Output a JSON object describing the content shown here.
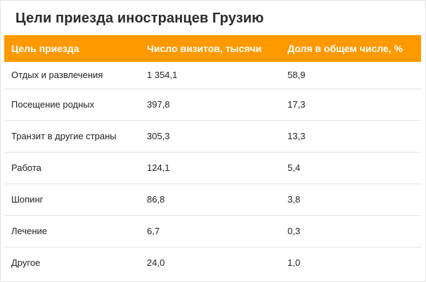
{
  "title": "Цели приезда иностранцев Грузию",
  "table": {
    "headers": [
      "Цель приезда",
      "Число визитов, тысячи",
      "Доля в общем числе, %"
    ],
    "rows": [
      [
        "Отдых и развлечения",
        "1 354,1",
        "58,9"
      ],
      [
        "Посещение родных",
        "397,8",
        "17,3"
      ],
      [
        "Транзит в другие страны",
        "305,3",
        "13,3"
      ],
      [
        "Работа",
        "124,1",
        "5,4"
      ],
      [
        "Шопинг",
        "86,8",
        "3,8"
      ],
      [
        "Лечение",
        "6,7",
        "0,3"
      ],
      [
        "Другое",
        "24,0",
        "1,0"
      ]
    ]
  },
  "colors": {
    "header_background": "#ff9900",
    "header_text": "#ffffff",
    "row_divider": "#e4e4e4"
  }
}
